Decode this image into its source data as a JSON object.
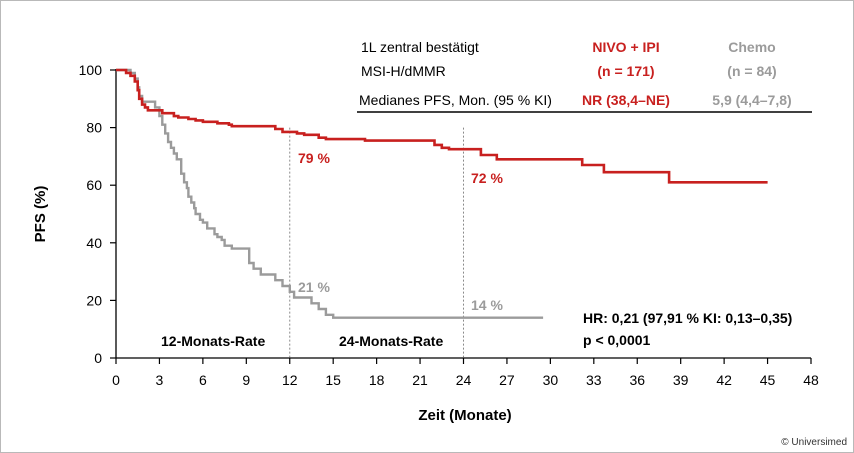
{
  "chart_data": {
    "type": "line",
    "title": "",
    "xlabel": "Zeit (Monate)",
    "ylabel": "PFS (%)",
    "xlim": [
      0,
      48
    ],
    "ylim": [
      0,
      100
    ],
    "x_ticks": [
      0,
      3,
      6,
      9,
      12,
      15,
      18,
      21,
      24,
      27,
      30,
      33,
      36,
      39,
      42,
      45,
      48
    ],
    "y_ticks": [
      0,
      20,
      40,
      60,
      80,
      100
    ],
    "grid": false,
    "legend_table": {
      "row_label_1": "1L zentral bestätigt",
      "row_label_2": "MSI-H/dMMR",
      "row_label_3": "Medianes PFS, Mon. (95 % KI)",
      "nivo_name": "NIVO + IPI",
      "nivo_n": "(n = 171)",
      "nivo_median": "NR (38,4–NE)",
      "chemo_name": "Chemo",
      "chemo_n": "(n = 84)",
      "chemo_median": "5,9 (4,4–7,8)"
    },
    "series": [
      {
        "name": "NIVO + IPI",
        "color": "#c8201f",
        "points": [
          [
            0,
            100
          ],
          [
            0.5,
            100
          ],
          [
            0.7,
            99
          ],
          [
            1.0,
            98
          ],
          [
            1.3,
            96
          ],
          [
            1.5,
            93
          ],
          [
            1.6,
            90
          ],
          [
            1.8,
            88
          ],
          [
            2.0,
            87
          ],
          [
            2.2,
            86
          ],
          [
            3.0,
            86
          ],
          [
            3.2,
            85
          ],
          [
            4.0,
            84
          ],
          [
            4.3,
            83.5
          ],
          [
            5.0,
            83
          ],
          [
            5.5,
            82.5
          ],
          [
            6.0,
            82
          ],
          [
            7.0,
            81.5
          ],
          [
            7.8,
            81
          ],
          [
            8.0,
            80.5
          ],
          [
            9.0,
            80.5
          ],
          [
            10.8,
            80.5
          ],
          [
            11.0,
            79.5
          ],
          [
            11.5,
            78.5
          ],
          [
            12.5,
            78
          ],
          [
            13.0,
            77.5
          ],
          [
            14.0,
            76.5
          ],
          [
            14.5,
            76
          ],
          [
            17.0,
            76
          ],
          [
            17.2,
            75.5
          ],
          [
            21.0,
            75.5
          ],
          [
            22.0,
            74
          ],
          [
            22.5,
            73
          ],
          [
            23.0,
            72.5
          ],
          [
            25.0,
            72.5
          ],
          [
            25.2,
            70.5
          ],
          [
            26.0,
            70.5
          ],
          [
            26.3,
            69
          ],
          [
            32.0,
            69
          ],
          [
            32.2,
            67
          ],
          [
            33.5,
            67
          ],
          [
            33.7,
            64.5
          ],
          [
            38.0,
            64.5
          ],
          [
            38.2,
            61
          ],
          [
            45.0,
            61
          ]
        ]
      },
      {
        "name": "Chemo",
        "color": "#9b9b9b",
        "points": [
          [
            0,
            100
          ],
          [
            0.8,
            100
          ],
          [
            1.0,
            99
          ],
          [
            1.3,
            97
          ],
          [
            1.5,
            94
          ],
          [
            1.6,
            91
          ],
          [
            1.8,
            89
          ],
          [
            2.5,
            89
          ],
          [
            2.7,
            87
          ],
          [
            3.0,
            84
          ],
          [
            3.2,
            81
          ],
          [
            3.4,
            78
          ],
          [
            3.6,
            75
          ],
          [
            3.8,
            73
          ],
          [
            4.0,
            71
          ],
          [
            4.2,
            69
          ],
          [
            4.5,
            64
          ],
          [
            4.7,
            61
          ],
          [
            4.9,
            59
          ],
          [
            5.0,
            56
          ],
          [
            5.2,
            54
          ],
          [
            5.4,
            52
          ],
          [
            5.5,
            50
          ],
          [
            5.8,
            48
          ],
          [
            6.0,
            47
          ],
          [
            6.3,
            45
          ],
          [
            6.8,
            43
          ],
          [
            7.0,
            42
          ],
          [
            7.3,
            41
          ],
          [
            7.5,
            39
          ],
          [
            8.0,
            38
          ],
          [
            9.0,
            38
          ],
          [
            9.2,
            33
          ],
          [
            9.5,
            31
          ],
          [
            10.0,
            29
          ],
          [
            11.0,
            27
          ],
          [
            11.5,
            25
          ],
          [
            12.0,
            23
          ],
          [
            12.3,
            21
          ],
          [
            13.5,
            19
          ],
          [
            14.0,
            17
          ],
          [
            14.5,
            15
          ],
          [
            15.0,
            14
          ],
          [
            29.5,
            14
          ]
        ]
      }
    ],
    "annotations": {
      "nivo_12": "79 %",
      "nivo_24": "72 %",
      "chemo_12": "21 %",
      "chemo_24": "14 %",
      "rate_12": "12-Monats-Rate",
      "rate_24": "24-Monats-Rate",
      "hr": "HR: 0,21 (97,91 % KI: 0,13–0,35)",
      "p": "p < 0,0001"
    },
    "colors": {
      "nivo": "#c8201f",
      "chemo": "#9b9b9b",
      "axis": "#000000",
      "guide": "#8a8a8a"
    }
  },
  "credit": "© Universimed"
}
